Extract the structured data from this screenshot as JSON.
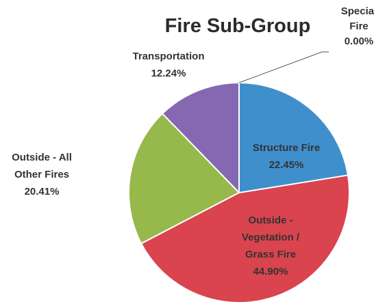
{
  "chart_data": {
    "type": "pie",
    "title": "Fire Sub-Group",
    "categories": [
      "Special Fire",
      "Structure Fire",
      "Outside - Vegetation / Grass Fire",
      "Outside - All Other Fires",
      "Transportation"
    ],
    "values": [
      0.0,
      22.45,
      44.9,
      20.41,
      12.24
    ],
    "value_labels": [
      "0.00%",
      "22.45%",
      "44.90%",
      "20.41%",
      "12.24%"
    ],
    "colors": [
      "#c0c0c0",
      "#3f8fcd",
      "#d9444f",
      "#97b84b",
      "#8468b1"
    ]
  }
}
